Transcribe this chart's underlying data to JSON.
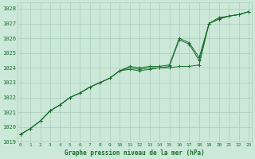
{
  "bg_color": "#cce8d8",
  "grid_color": "#aaccbb",
  "line_color": "#1a6e2e",
  "title": "Graphe pression niveau de la mer (hPa)",
  "title_color": "#1a6e2e",
  "ylabel_vals": [
    1019,
    1020,
    1021,
    1022,
    1023,
    1024,
    1025,
    1026,
    1027,
    1028
  ],
  "xlim": [
    -0.3,
    23.3
  ],
  "ylim": [
    1019.2,
    1028.4
  ],
  "series": [
    [
      1019.5,
      1019.9,
      1020.4,
      1021.1,
      1021.5,
      1022.0,
      1022.3,
      1022.7,
      1023.0,
      1023.3,
      1023.8,
      1023.9,
      1023.8,
      1023.9,
      1024.0,
      1024.0,
      1024.1,
      1024.1,
      1024.2,
      1027.0,
      1027.3,
      1027.5,
      1027.6,
      1027.8
    ],
    [
      1019.5,
      1019.9,
      1020.4,
      1021.1,
      1021.5,
      1022.0,
      1022.3,
      1022.7,
      1023.0,
      1023.3,
      1023.8,
      1024.0,
      1023.9,
      1024.0,
      1024.0,
      1024.1,
      1025.9,
      1025.6,
      1024.5,
      1027.0,
      1027.4,
      1027.5,
      1027.6,
      1027.8
    ],
    [
      1019.5,
      1019.9,
      1020.4,
      1021.1,
      1021.5,
      1022.0,
      1022.3,
      1022.7,
      1023.0,
      1023.3,
      1023.8,
      1024.1,
      1024.0,
      1024.1,
      1024.1,
      1024.2,
      1026.0,
      1025.7,
      1024.7,
      1027.0,
      1027.3,
      1027.5,
      1027.6,
      1027.8
    ]
  ]
}
